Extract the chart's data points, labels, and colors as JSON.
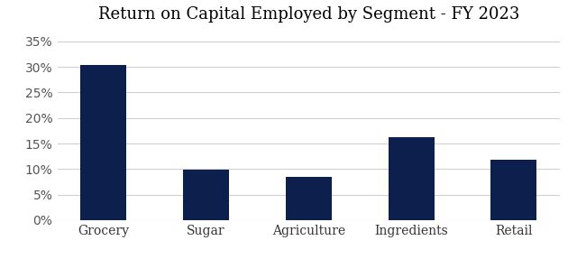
{
  "title": "Return on Capital Employed by Segment - FY 2023",
  "categories": [
    "Grocery",
    "Sugar",
    "Agriculture",
    "Ingredients",
    "Retail"
  ],
  "values": [
    0.303,
    0.098,
    0.085,
    0.163,
    0.119
  ],
  "bar_color": "#0d1f4c",
  "background_color": "#ffffff",
  "grid_color": "#d0d0d0",
  "ylim": [
    0,
    0.37
  ],
  "yticks": [
    0.0,
    0.05,
    0.1,
    0.15,
    0.2,
    0.25,
    0.3,
    0.35
  ],
  "title_fontsize": 13,
  "tick_fontsize": 10,
  "bar_width": 0.45
}
